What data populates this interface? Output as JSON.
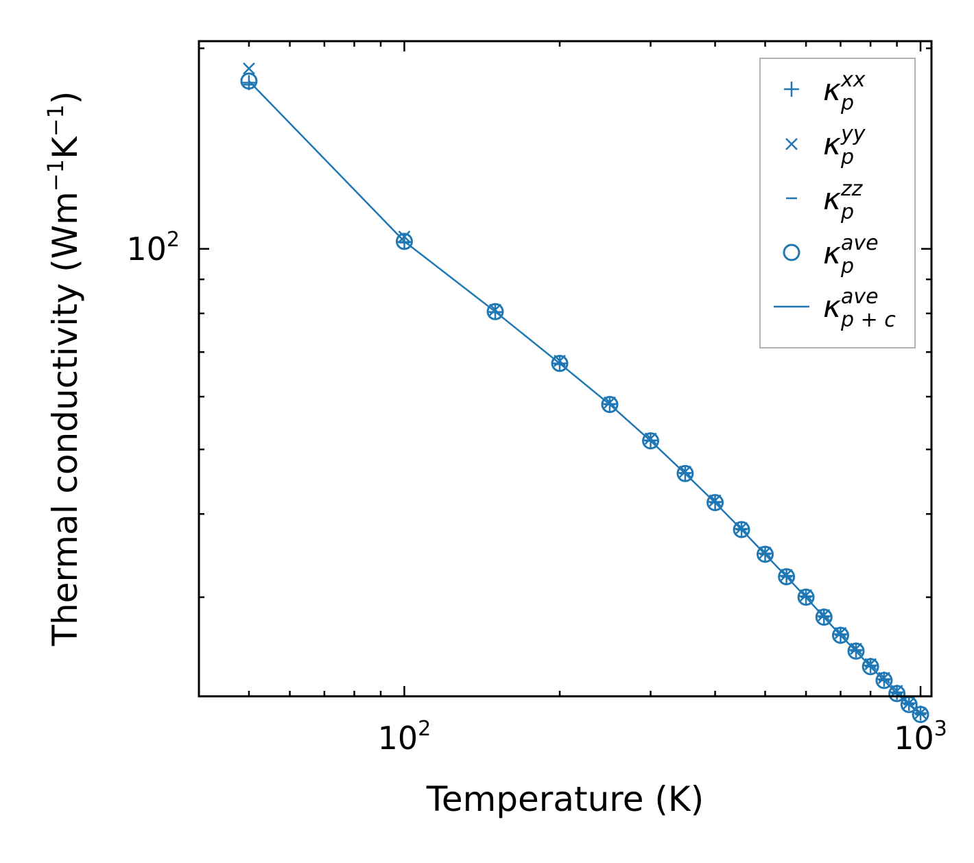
{
  "chart_data": {
    "type": "scatter",
    "xscale": "log",
    "yscale": "log",
    "xlim": [
      40,
      1050
    ],
    "ylim": [
      21.3,
      205
    ],
    "xlabel": "Temperature (K)",
    "ylabel": {
      "base": "Thermal conductivity (Wm",
      "exp1": "−1",
      "mid": "K",
      "exp2": "−1",
      "end": ")"
    },
    "xticks_major": [
      {
        "value": 100,
        "base": "10",
        "exp": "2"
      },
      {
        "value": 1000,
        "base": "10",
        "exp": "3"
      }
    ],
    "yticks_major": [
      {
        "value": 100,
        "base": "10",
        "exp": "2"
      }
    ],
    "x": [
      50,
      100,
      150,
      200,
      250,
      300,
      350,
      400,
      450,
      500,
      550,
      600,
      650,
      700,
      750,
      800,
      850,
      900,
      950,
      1000
    ],
    "series": [
      {
        "name": "kappa_p^xx",
        "marker": "plus",
        "values": [
          177.6,
          102.4,
          80.4,
          67.3,
          58.5,
          51.6,
          46.1,
          41.7,
          38.0,
          34.9,
          32.3,
          30.1,
          28.1,
          26.4,
          25.0,
          23.7,
          22.6,
          21.6,
          20.8,
          20.1
        ]
      },
      {
        "name": "kappa_p^yy",
        "marker": "x",
        "values": [
          186.5,
          104.3,
          81.0,
          67.9,
          58.8,
          51.9,
          46.3,
          41.9,
          38.1,
          35.0,
          32.4,
          30.2,
          28.2,
          26.5,
          25.1,
          23.8,
          22.7,
          21.7,
          20.8,
          20.1
        ]
      },
      {
        "name": "kappa_p^zz",
        "marker": "hline",
        "values": [
          176.4,
          102.2,
          80.3,
          67.1,
          58.4,
          51.5,
          46.0,
          41.6,
          37.9,
          34.8,
          32.2,
          30.0,
          28.0,
          26.3,
          24.9,
          23.6,
          22.5,
          21.5,
          20.7,
          20.0
        ]
      },
      {
        "name": "kappa_p^ave",
        "marker": "circle",
        "values": [
          178.6,
          102.6,
          80.5,
          67.3,
          58.4,
          51.5,
          46.0,
          41.6,
          37.9,
          34.8,
          32.2,
          30.0,
          28.0,
          26.3,
          24.9,
          23.6,
          22.5,
          21.5,
          20.7,
          20.0
        ]
      },
      {
        "name": "kappa_p+c^ave",
        "marker": "line",
        "values": [
          178.6,
          102.6,
          80.5,
          67.3,
          58.4,
          51.5,
          46.0,
          41.6,
          37.9,
          34.8,
          32.2,
          30.0,
          28.0,
          26.3,
          24.9,
          23.6,
          22.5,
          21.5,
          20.7,
          20.0
        ]
      }
    ],
    "legend": {
      "position": "top-right",
      "entries": [
        {
          "symbol": "κ",
          "sub": "p",
          "sup": "xx"
        },
        {
          "symbol": "κ",
          "sub": "p",
          "sup": "yy"
        },
        {
          "symbol": "κ",
          "sub": "p",
          "sup": "zz"
        },
        {
          "symbol": "κ",
          "sub": "p",
          "sup": "ave"
        },
        {
          "symbol": "κ",
          "sub": "p + c",
          "sup": "ave"
        }
      ]
    },
    "color": "#1f77b4",
    "grid": false
  }
}
